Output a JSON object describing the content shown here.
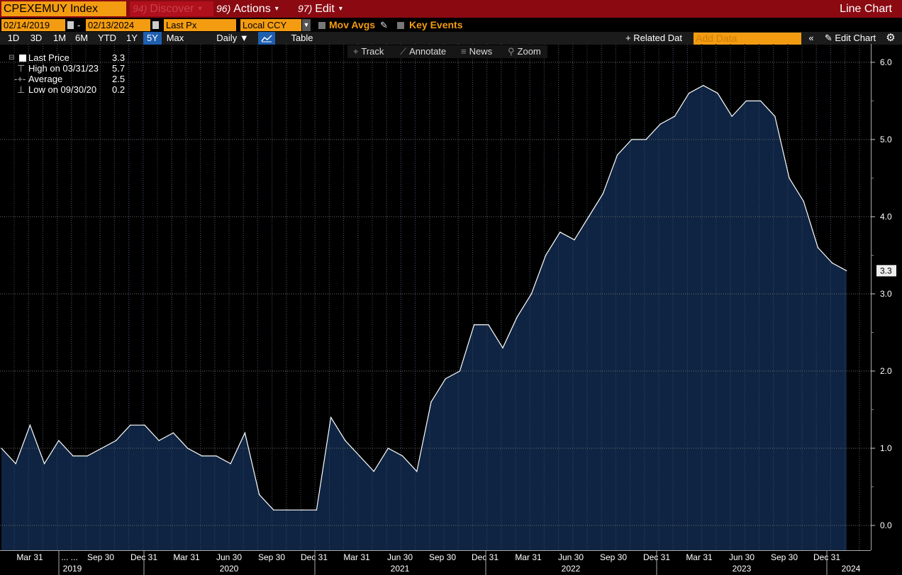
{
  "titlebar": {
    "ticker": "CPEXEMUY Index",
    "discover_num": "94)",
    "discover_label": "Discover",
    "actions_num": "96)",
    "actions_label": "Actions",
    "edit_num": "97)",
    "edit_label": "Edit",
    "chart_kind": "Line Chart"
  },
  "controls": {
    "start_date": "02/14/2019",
    "date_sep": "-",
    "end_date": "02/13/2024",
    "field": "Last Px",
    "currency": "Local CCY",
    "mov_avgs": "Mov Avgs",
    "key_events": "Key Events"
  },
  "periods": [
    "1D",
    "3D",
    "1M",
    "6M",
    "YTD",
    "1Y",
    "5Y",
    "Max"
  ],
  "active_period": "5Y",
  "frequency": "Daily",
  "table_label": "Table",
  "related_data": "Related Dat",
  "add_data_placeholder": "Add Data",
  "edit_chart": "Edit Chart",
  "chart_tools": [
    "Track",
    "Annotate",
    "News",
    "Zoom"
  ],
  "legend": {
    "last_price_label": "Last Price",
    "last_price_value": "3.3",
    "high_label": "High on 03/31/23",
    "high_value": "5.7",
    "average_label": "Average",
    "average_value": "2.5",
    "low_label": "Low on 09/30/20",
    "low_value": "0.2"
  },
  "colors": {
    "title_bar": "#8b0a12",
    "amber": "#f39c12",
    "area_fill": "#0f2442",
    "line": "#ffffff"
  },
  "chart_data": {
    "type": "area",
    "ylim": [
      -0.3,
      6.2
    ],
    "yticks": [
      "0.0",
      "1.0",
      "2.0",
      "3.0",
      "4.0",
      "5.0",
      "6.0"
    ],
    "last_value_label": "3.3",
    "x_tick_labels": [
      "Mar 31",
      "... ...",
      "Sep 30",
      "Dec 31",
      "Mar 31",
      "Jun 30",
      "Sep 30",
      "Dec 31",
      "Mar 31",
      "Jun 30",
      "Sep 30",
      "Dec 31",
      "Mar 31",
      "Jun 30",
      "Sep 30",
      "Dec 31",
      "Mar 31",
      "Jun 30",
      "Sep 30",
      "Dec 31"
    ],
    "year_labels": [
      "2019",
      "2020",
      "2021",
      "2022",
      "2023",
      "2024"
    ],
    "series": [
      {
        "x": [
          "2019-02",
          "2019-03",
          "2019-04",
          "2019-05",
          "2019-06",
          "2019-07",
          "2019-08",
          "2019-09",
          "2019-10",
          "2019-11",
          "2019-12",
          "2020-01",
          "2020-02",
          "2020-03",
          "2020-04",
          "2020-05",
          "2020-06",
          "2020-07",
          "2020-08",
          "2020-09",
          "2020-10",
          "2020-11",
          "2020-12",
          "2021-01",
          "2021-02",
          "2021-03",
          "2021-04",
          "2021-05",
          "2021-06",
          "2021-07",
          "2021-08",
          "2021-09",
          "2021-10",
          "2021-11",
          "2021-12",
          "2022-01",
          "2022-02",
          "2022-03",
          "2022-04",
          "2022-05",
          "2022-06",
          "2022-07",
          "2022-08",
          "2022-09",
          "2022-10",
          "2022-11",
          "2022-12",
          "2023-01",
          "2023-02",
          "2023-03",
          "2023-04",
          "2023-05",
          "2023-06",
          "2023-07",
          "2023-08",
          "2023-09",
          "2023-10",
          "2023-11",
          "2023-12",
          "2024-01"
        ],
        "values": [
          1.0,
          0.8,
          1.3,
          0.8,
          1.1,
          0.9,
          0.9,
          1.0,
          1.1,
          1.3,
          1.3,
          1.1,
          1.2,
          1.0,
          0.9,
          0.9,
          0.8,
          1.2,
          0.4,
          0.2,
          0.2,
          0.2,
          0.2,
          1.4,
          1.1,
          0.9,
          0.7,
          1.0,
          0.9,
          0.7,
          1.6,
          1.9,
          2.0,
          2.6,
          2.6,
          2.3,
          2.7,
          3.0,
          3.5,
          3.8,
          3.7,
          4.0,
          4.3,
          4.8,
          5.0,
          5.0,
          5.2,
          5.3,
          5.6,
          5.7,
          5.6,
          5.3,
          5.5,
          5.5,
          5.3,
          4.5,
          4.2,
          3.6,
          3.4,
          3.3
        ]
      }
    ]
  }
}
